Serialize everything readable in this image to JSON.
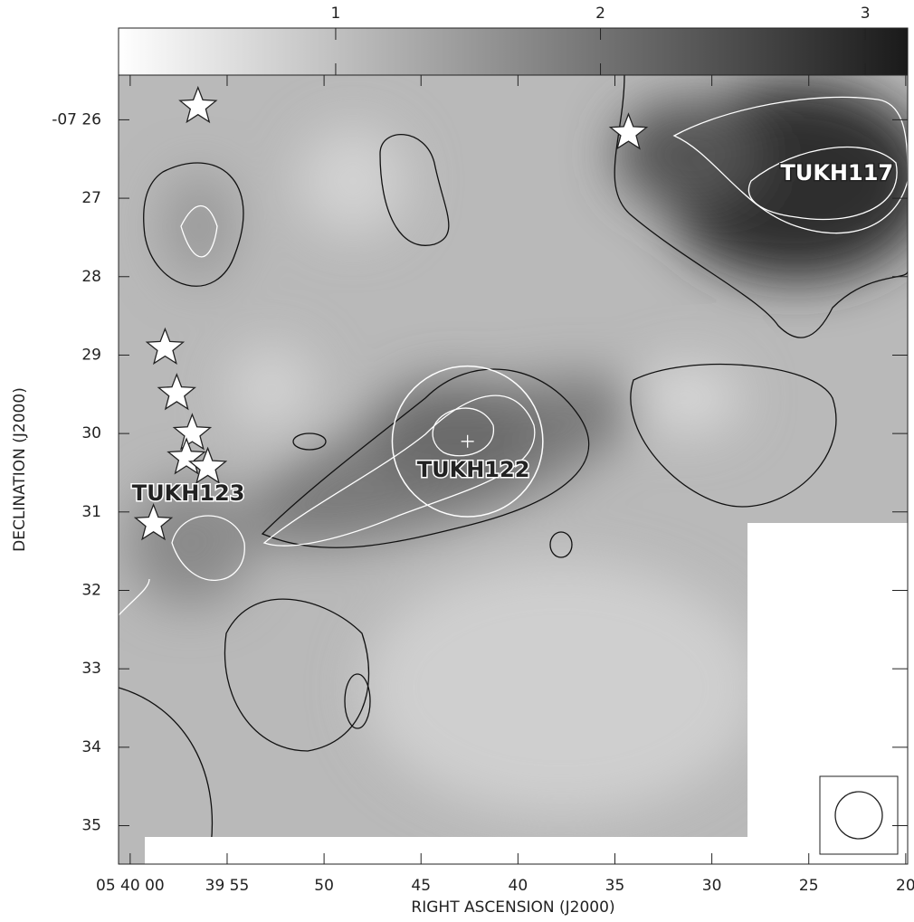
{
  "chart_data": {
    "type": "contour-map",
    "x_label": "RIGHT ASCENSION (J2000)",
    "y_label": "DECLINATION (J2000)",
    "xlim": [
      60.6,
      19.9
    ],
    "xticks": [
      {
        "value": 60,
        "label": "05 40 00"
      },
      {
        "value": 55,
        "label": "39 55"
      },
      50,
      45,
      40,
      35,
      30,
      25,
      20
    ],
    "ylim": [
      25.43,
      35.49
    ],
    "yticks": [
      {
        "value": 26,
        "label": "-07 26"
      },
      27,
      28,
      29,
      30,
      31,
      32,
      33,
      34,
      35
    ],
    "colorbar": {
      "lim": [
        0.18,
        3.16
      ],
      "ticks": [
        1,
        2,
        3
      ],
      "colors": [
        "#ffffff",
        "#1a1a1a"
      ]
    },
    "stars": {
      "x": [
        56.5,
        34.3,
        58.2,
        57.6,
        56.8,
        57.1,
        56.0,
        58.8
      ],
      "y": [
        25.83,
        26.17,
        28.91,
        29.49,
        30.0,
        30.31,
        30.43,
        31.15
      ]
    },
    "circle": {
      "x": 42.6,
      "y": 30.1,
      "r": 0.96,
      "color": "#ffffff"
    },
    "annotations": [
      {
        "text": "TUKH117",
        "x": 23.55,
        "y": 26.69,
        "color": "#ffffff",
        "outline": "#222222"
      },
      {
        "text": "TUKH122",
        "x": 42.3,
        "y": 30.47,
        "color": "#222222",
        "outline": "#ffffff"
      },
      {
        "text": "TUKH123",
        "x": 57.0,
        "y": 30.77,
        "color": "#222222",
        "outline": "#ffffff"
      }
    ]
  }
}
